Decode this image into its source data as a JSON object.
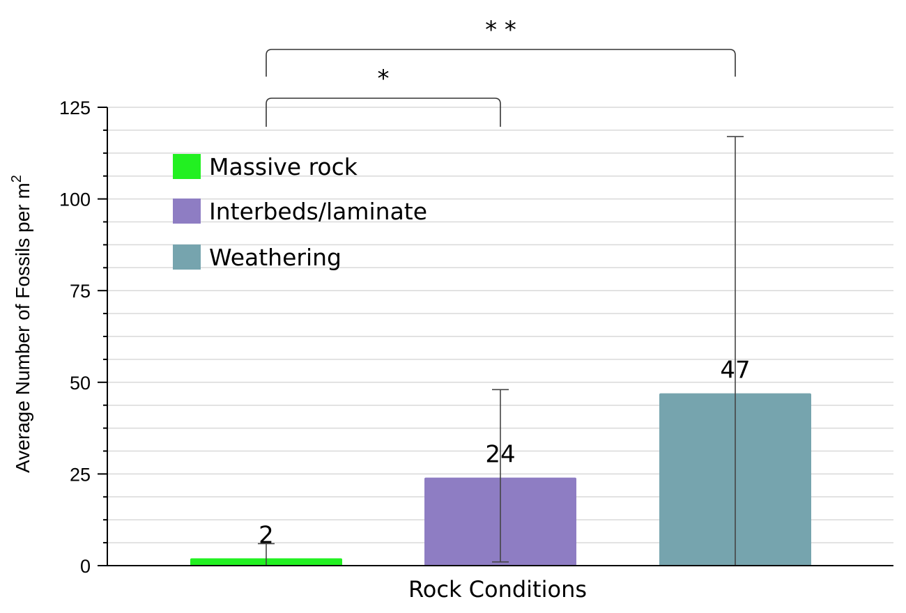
{
  "chart_data": {
    "type": "bar",
    "title": "",
    "xlabel": "Rock Conditions",
    "ylabel": "Average Number of Fossils per m",
    "ylabel_superscript": "2",
    "ylim": [
      0,
      125
    ],
    "yticks": [
      0,
      25,
      50,
      75,
      100,
      125
    ],
    "grid": true,
    "legend_position": "top-left",
    "categories": [
      "Massive rock",
      "Interbeds/laminate",
      "Weathering"
    ],
    "values": [
      2,
      24,
      47
    ],
    "error_upper": [
      6,
      48,
      117
    ],
    "error_lower": [
      0,
      1,
      0
    ],
    "data_labels": [
      "2",
      "24",
      "47"
    ],
    "colors": [
      "#22f021",
      "#8e7dc3",
      "#76a4ae"
    ],
    "significance": [
      {
        "from": 0,
        "to": 1,
        "label": "*"
      },
      {
        "from": 0,
        "to": 2,
        "label": "* *"
      }
    ]
  }
}
